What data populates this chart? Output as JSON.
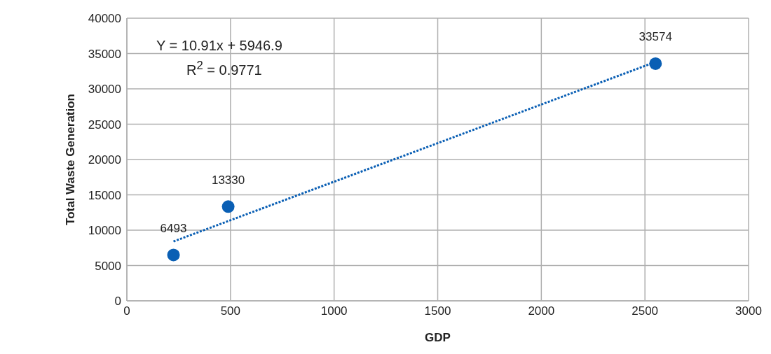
{
  "chart_data": {
    "type": "scatter",
    "xlabel": "GDP",
    "ylabel": "Total Waste Generation",
    "xlim": [
      0,
      3000
    ],
    "xticks": [
      0,
      500,
      1000,
      1500,
      2000,
      2500,
      3000
    ],
    "ylim": [
      0,
      40000
    ],
    "yticks": [
      0,
      5000,
      10000,
      15000,
      20000,
      25000,
      30000,
      35000,
      40000
    ],
    "grid": true,
    "legend": false,
    "annotations": [
      "Y = 10.91x + 5946.9",
      "R$^{2}$ = 0.9771"
    ],
    "series": [
      {
        "type": "scatter",
        "color": "#0a5fb4",
        "marker": "circle",
        "x": [
          225,
          489,
          2551
        ],
        "values": [
          6493,
          13330,
          33574
        ],
        "value_labels": [
          "6493",
          "13330",
          "33574"
        ]
      },
      {
        "type": "line",
        "color": "#0a5fb4",
        "line_style": "dotted",
        "marker": "none",
        "x": [
          225,
          2551
        ],
        "values": [
          8400,
          33800
        ]
      }
    ]
  }
}
